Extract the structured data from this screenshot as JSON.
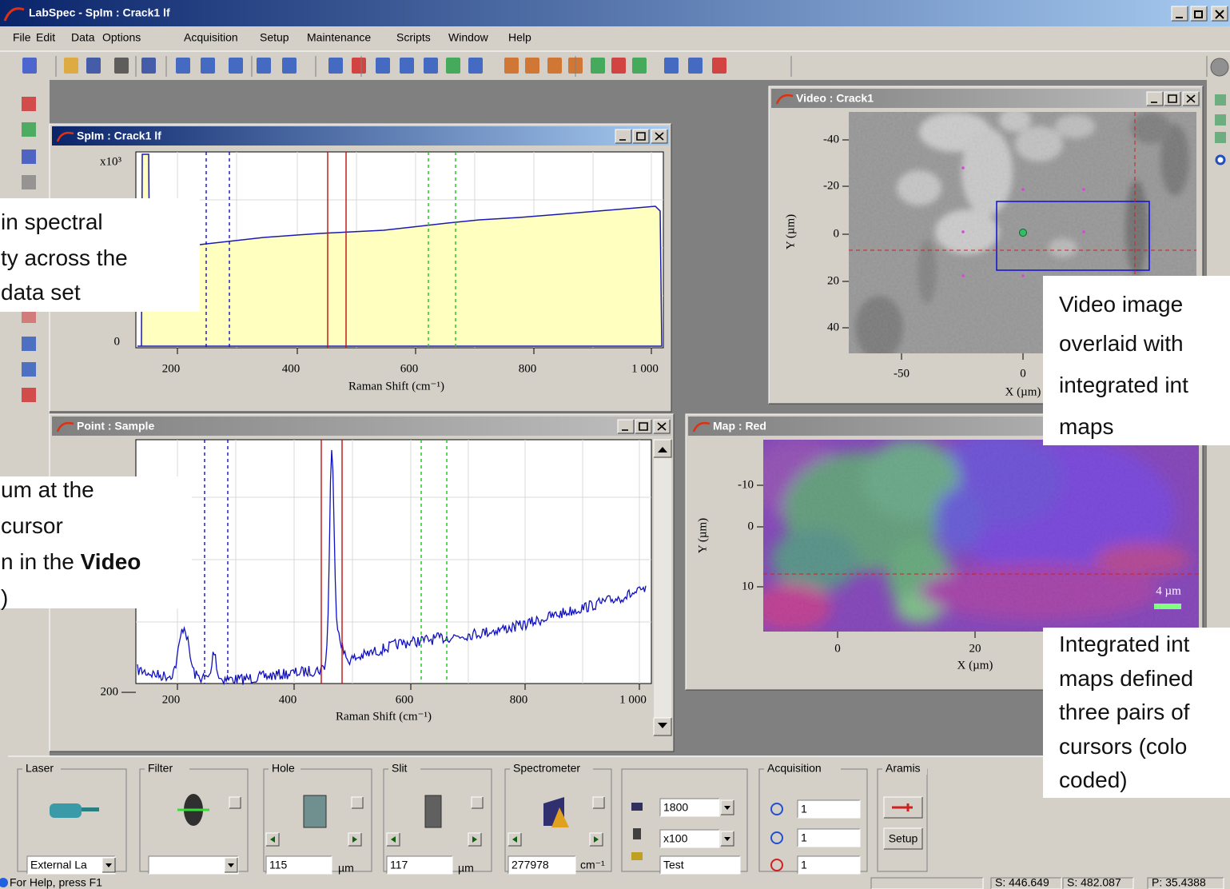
{
  "title_bar": {
    "title": "LabSpec - SpIm : Crack1 lf"
  },
  "menu": [
    "File",
    "Edit",
    "Data",
    "Options",
    "Acquisition",
    "Setup",
    "Maintenance",
    "Scripts",
    "Window",
    "Help"
  ],
  "windows": {
    "spim": {
      "title": "SpIm : Crack1 lf",
      "y_multiplier": "x10³",
      "y_ticks": [
        "0"
      ],
      "x_ticks": [
        "200",
        "400",
        "600",
        "800",
        "1 000"
      ],
      "x_label": "Raman Shift (cm⁻¹)"
    },
    "video": {
      "title": "Video : Crack1",
      "y_ticks": [
        "-40",
        "-20",
        "0",
        "20",
        "40"
      ],
      "y_label": "Y (µm)",
      "x_ticks": [
        "-50",
        "0"
      ],
      "x_label": "X (µm)"
    },
    "point": {
      "title": "Point : Sample",
      "y_ticks": [
        "200"
      ],
      "x_ticks": [
        "200",
        "400",
        "600",
        "800",
        "1 000"
      ],
      "x_label": "Raman Shift (cm⁻¹)"
    },
    "map": {
      "title": "Map : Red",
      "y_ticks": [
        "-10",
        "0",
        "10"
      ],
      "y_label": "Y (µm)",
      "x_ticks": [
        "0",
        "20"
      ],
      "x_label": "X (µm)",
      "scale_bar": "4 µm"
    }
  },
  "callouts": [
    {
      "lines": [
        "in spectral",
        "ty across the",
        "data set"
      ]
    },
    {
      "lines": [
        "um at the",
        "cursor",
        "n in the ",
        ")"
      ],
      "bold": "Video"
    },
    {
      "lines": [
        "Video image",
        "overlaid with",
        "integrated int",
        "maps"
      ]
    },
    {
      "lines": [
        "Integrated int",
        "maps defined",
        "three pairs of",
        "cursors (colo",
        "coded)"
      ]
    }
  ],
  "control_panel": {
    "groups": [
      "Laser",
      "Filter",
      "Hole",
      "Slit",
      "Spectrometer",
      "Acquisition",
      "Aramis"
    ],
    "laser_select": "External La",
    "hole": {
      "value": "115",
      "unit": "µm"
    },
    "slit": {
      "value": "117",
      "unit": "µm"
    },
    "spectrometer": {
      "value": "277978",
      "unit": "cm⁻¹"
    },
    "grating": "1800",
    "objective": "x100",
    "sample_name": "Test",
    "acquisition": [
      "1",
      "1",
      "1"
    ],
    "aramis_button": "Setup"
  },
  "status_bar": {
    "help": "For Help, press F1",
    "fields": [
      "S: 446.649",
      "S: 482.087",
      "P: 35.4388"
    ]
  }
}
